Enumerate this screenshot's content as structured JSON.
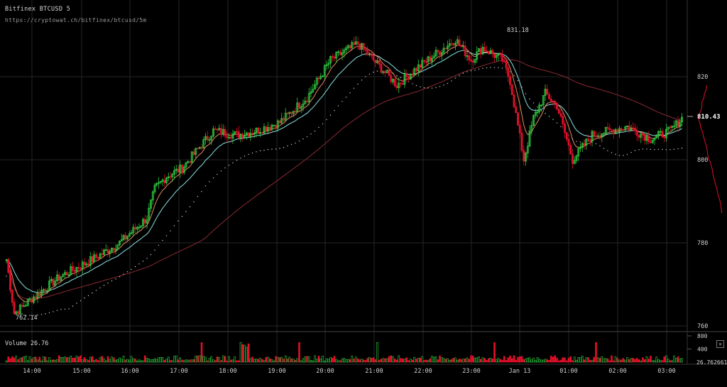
{
  "header": {
    "title": "Bitfinex BTCUSD 5",
    "url": "https://cryptowat.ch/bitfinex/btcusd/5m"
  },
  "volume_panel": {
    "label": "Volume 26.76",
    "close_icon": "close-icon",
    "current_value_label": "26.762661"
  },
  "colors": {
    "background": "#000000",
    "up": "#2ecc40",
    "down": "#e0102a",
    "ema_fast": "#e38b5e",
    "ema_slow": "#7fd0d0",
    "ma_long": "#8a2a33",
    "sar": "#cfcfcf",
    "grid": "#262626",
    "text": "#d6d6d6"
  },
  "chart_data": {
    "type": "candlestick",
    "exchange_pair": "Bitfinex BTCUSD",
    "interval": "5m",
    "y_ticks": [
      760,
      780,
      800,
      820
    ],
    "ylim": [
      758,
      835
    ],
    "x_ticks": [
      "14:00",
      "15:00",
      "16:00",
      "17:00",
      "18:00",
      "19:00",
      "20:00",
      "21:00",
      "22:00",
      "23:00",
      "Jan 13",
      "01:00",
      "02:00",
      "03:00"
    ],
    "last_price_label": "810.43",
    "high_annotation": "831.18",
    "low_annotation": "762.14",
    "volume": {
      "y_ticks": [
        400,
        800
      ],
      "current": "26.762661"
    },
    "close_path": [
      [
        0,
        776
      ],
      [
        4,
        763
      ],
      [
        14,
        767
      ],
      [
        28,
        772
      ],
      [
        44,
        776
      ],
      [
        58,
        780
      ],
      [
        72,
        786
      ],
      [
        76,
        793
      ],
      [
        82,
        796
      ],
      [
        90,
        798
      ],
      [
        106,
        807
      ],
      [
        118,
        806
      ],
      [
        128,
        807
      ],
      [
        140,
        809
      ],
      [
        154,
        815
      ],
      [
        166,
        824
      ],
      [
        180,
        828
      ],
      [
        200,
        818
      ],
      [
        210,
        822
      ],
      [
        230,
        829
      ],
      [
        238,
        824
      ],
      [
        244,
        827
      ],
      [
        254,
        824
      ],
      [
        258,
        819
      ],
      [
        265,
        800
      ],
      [
        270,
        810
      ],
      [
        276,
        816
      ],
      [
        282,
        813
      ],
      [
        290,
        800
      ],
      [
        300,
        806
      ],
      [
        318,
        808
      ],
      [
        330,
        805
      ],
      [
        340,
        807
      ],
      [
        346,
        810
      ]
    ]
  }
}
